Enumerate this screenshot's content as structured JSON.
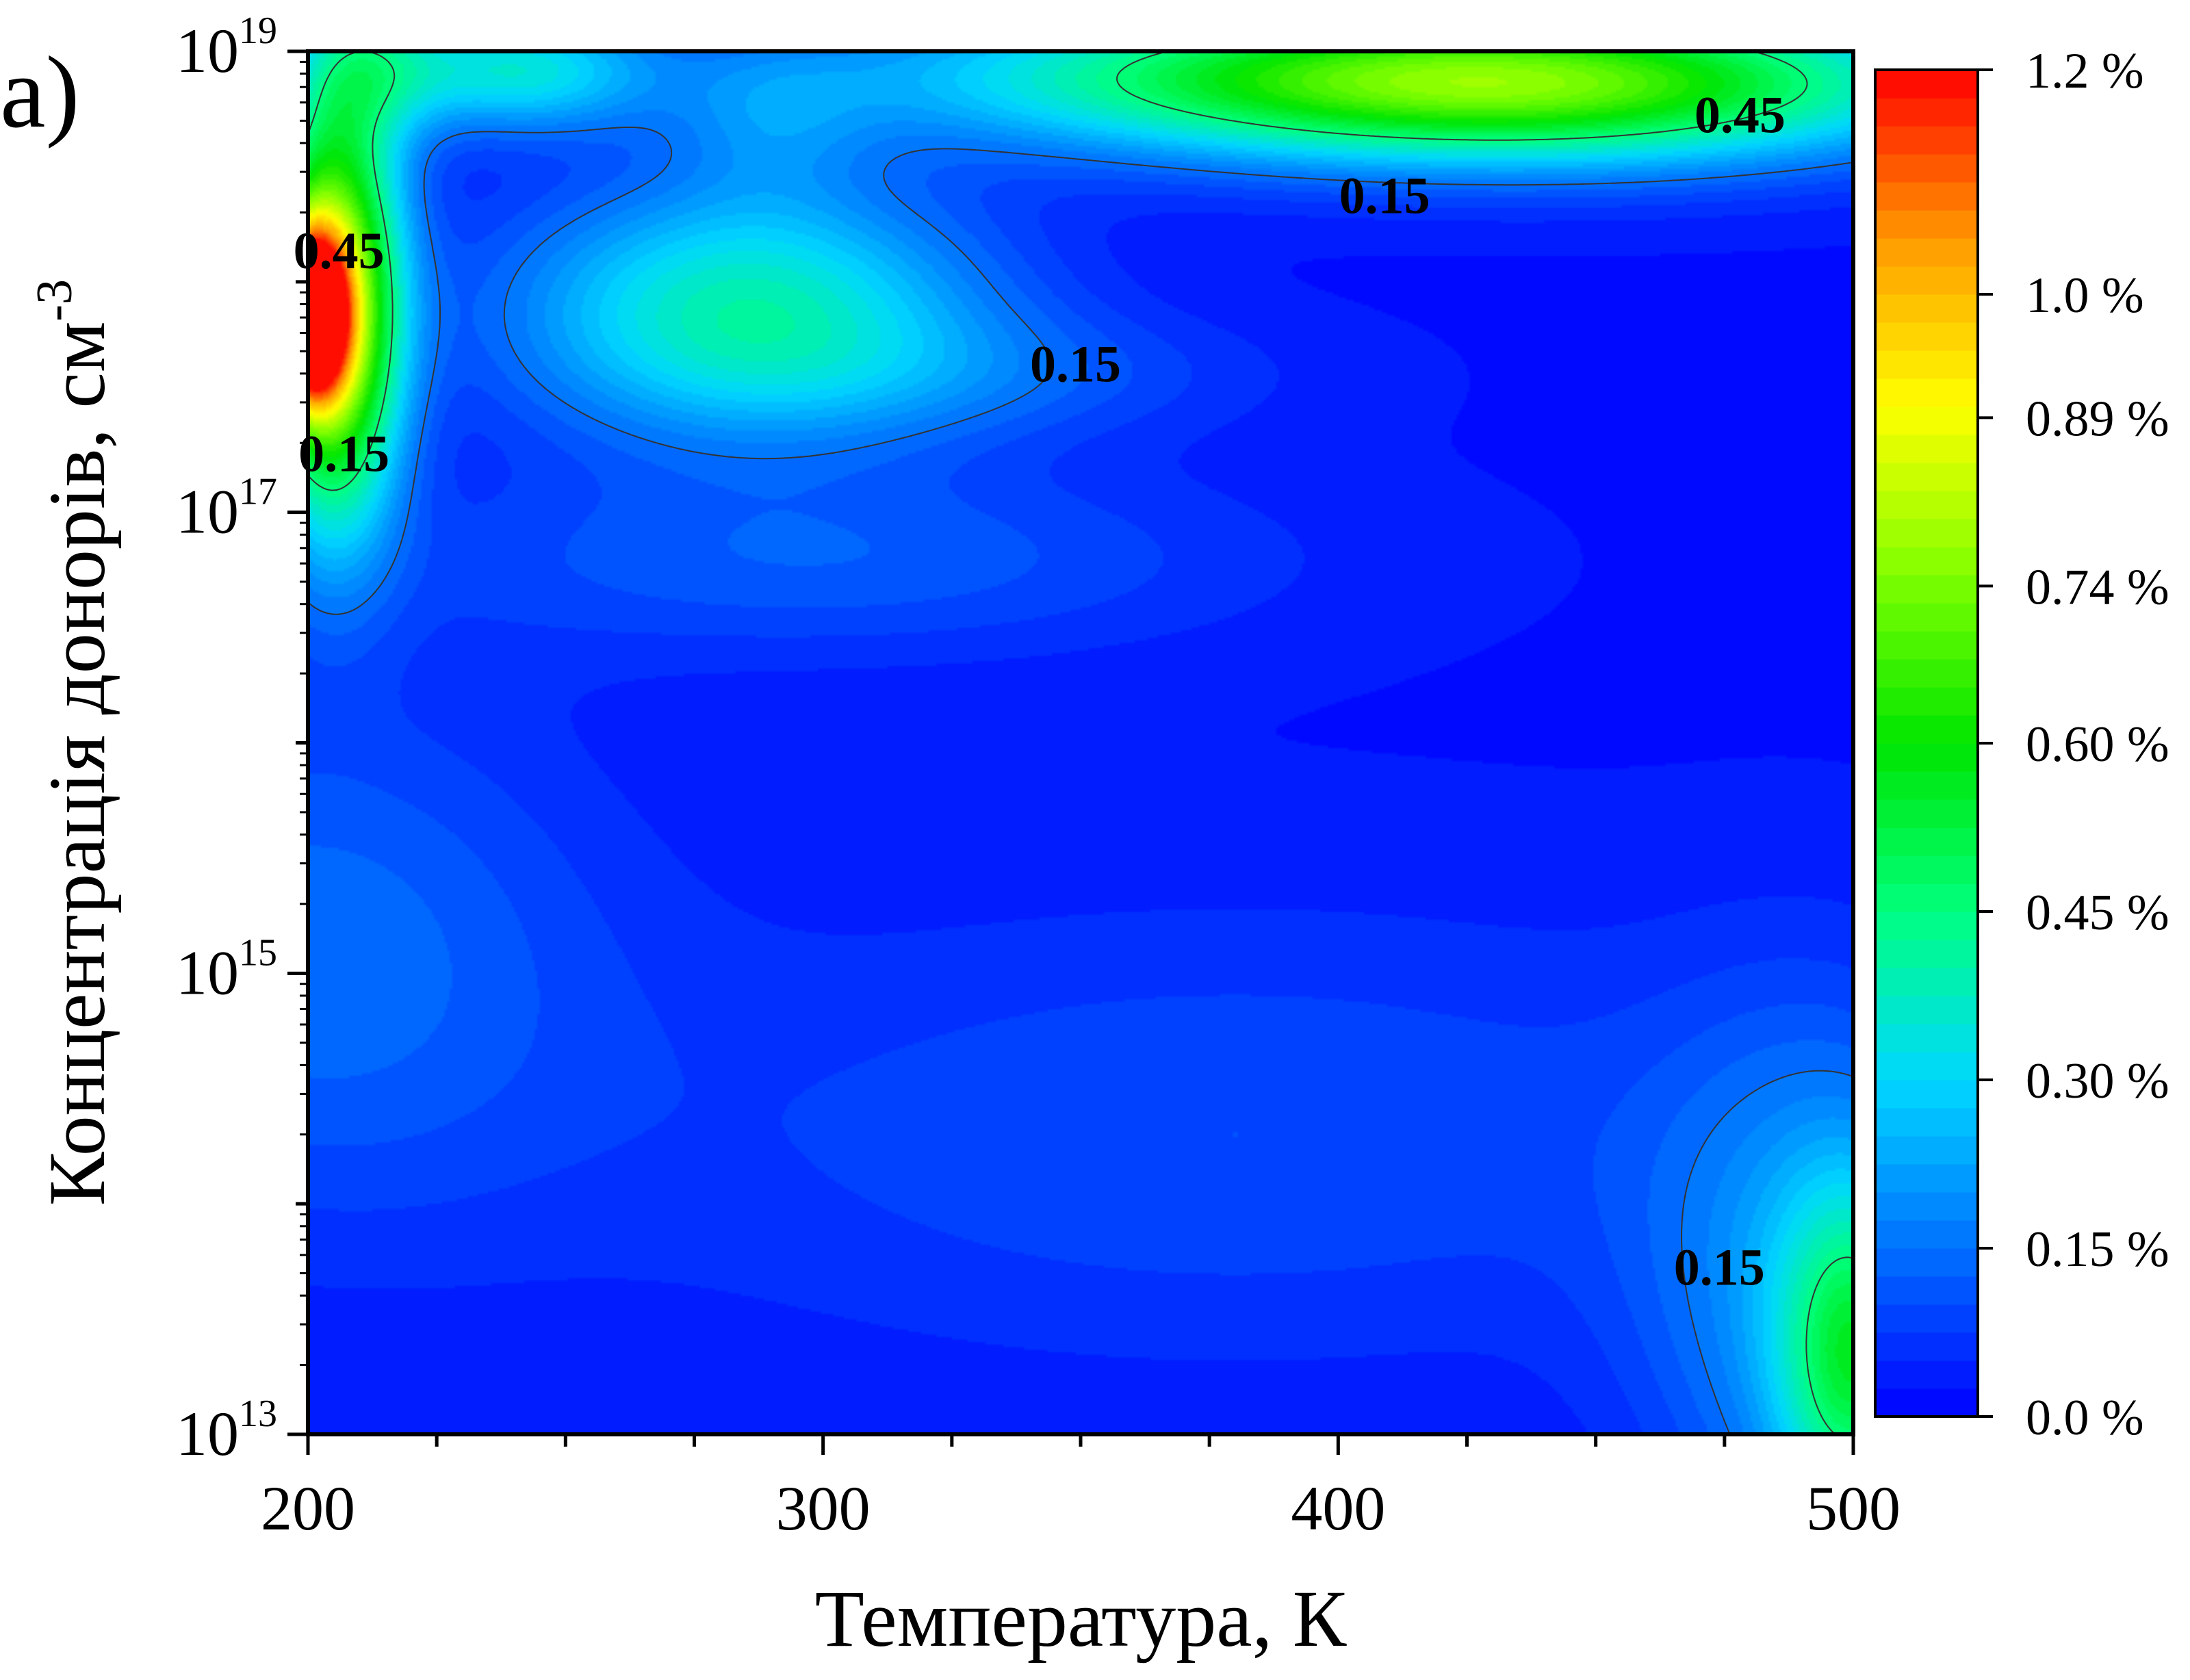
{
  "chart_data": {
    "type": "heatmap",
    "subtype": "filled-contour",
    "panel_label": "а)",
    "xlabel": "Температура, К",
    "ylabel": "Концентрація донорів, см",
    "ylabel_superscript": "-3",
    "x_scale": "linear",
    "y_scale": "log",
    "xlim": [
      200,
      500
    ],
    "ylim": [
      10000000000000.0,
      1e+19
    ],
    "x_ticks": [
      200,
      300,
      400,
      500
    ],
    "x_tick_labels": [
      "200",
      "300",
      "400",
      "500"
    ],
    "y_ticks": [
      10000000000000.0,
      1000000000000000.0,
      1e+17,
      1e+19
    ],
    "y_tick_labels": [
      {
        "base": "10",
        "exp": "13"
      },
      {
        "base": "10",
        "exp": "15"
      },
      {
        "base": "10",
        "exp": "17"
      },
      {
        "base": "10",
        "exp": "19"
      }
    ],
    "colorbar": {
      "range": [
        0.0,
        1.2
      ],
      "ticks": [
        0.0,
        0.15,
        0.3,
        0.45,
        0.6,
        0.74,
        0.89,
        1.0,
        1.2
      ],
      "tick_labels": [
        "0.0 %",
        "0.15 %",
        "0.30 %",
        "0.45 %",
        "0.60 %",
        "0.74 %",
        "0.89 %",
        "1.0 %",
        "1.2 %"
      ],
      "levels": 48,
      "colors": [
        "#0000ff",
        "#0070ff",
        "#00d8ff",
        "#00ff7f",
        "#00e600",
        "#80ff00",
        "#ffff00",
        "#ff9900",
        "#ff0000"
      ]
    },
    "contour_levels": [
      0.15,
      0.45
    ],
    "contour_labels": [
      {
        "text": "0.45",
        "T": 206,
        "logN": 18.11
      },
      {
        "text": "0.15",
        "T": 207,
        "logN": 17.23
      },
      {
        "text": "0.15",
        "T": 349,
        "logN": 17.62
      },
      {
        "text": "0.15",
        "T": 409,
        "logN": 18.35
      },
      {
        "text": "0.45",
        "T": 478,
        "logN": 18.7
      },
      {
        "text": "0.15",
        "T": 474,
        "logN": 13.7
      }
    ],
    "features": [
      {
        "T": 200,
        "logN": 17.85,
        "value": 1.1,
        "sT": 5,
        "sN": 0.25
      },
      {
        "T": 205,
        "logN": 18.1,
        "value": 0.55,
        "sT": 9,
        "sN": 0.6
      },
      {
        "T": 205,
        "logN": 17.6,
        "value": 0.4,
        "sT": 9,
        "sN": 0.55
      },
      {
        "T": 213,
        "logN": 18.95,
        "value": 0.2,
        "sT": 10,
        "sN": 0.25
      },
      {
        "T": 240,
        "logN": 18.92,
        "value": 0.3,
        "sT": 18,
        "sN": 0.18
      },
      {
        "T": 285,
        "logN": 17.88,
        "value": 0.37,
        "sT": 32,
        "sN": 0.38
      },
      {
        "T": 290,
        "logN": 18.7,
        "value": 0.1,
        "sT": 14,
        "sN": 0.25
      },
      {
        "T": 330,
        "logN": 17.6,
        "value": 0.08,
        "sT": 40,
        "sN": 0.2
      },
      {
        "T": 440,
        "logN": 18.85,
        "value": 0.55,
        "sT": 55,
        "sN": 0.24
      },
      {
        "T": 385,
        "logN": 18.9,
        "value": 0.28,
        "sT": 65,
        "sN": 0.22
      },
      {
        "T": 300,
        "logN": 16.8,
        "value": 0.1,
        "sT": 60,
        "sN": 0.3
      },
      {
        "T": 200,
        "logN": 15.1,
        "value": 0.12,
        "sT": 40,
        "sN": 0.8
      },
      {
        "T": 380,
        "logN": 14.3,
        "value": 0.08,
        "sT": 90,
        "sN": 0.7
      },
      {
        "T": 500,
        "logN": 13.3,
        "value": 0.37,
        "sT": 10,
        "sN": 0.5
      },
      {
        "T": 492,
        "logN": 13.6,
        "value": 0.18,
        "sT": 22,
        "sN": 0.8
      }
    ]
  }
}
